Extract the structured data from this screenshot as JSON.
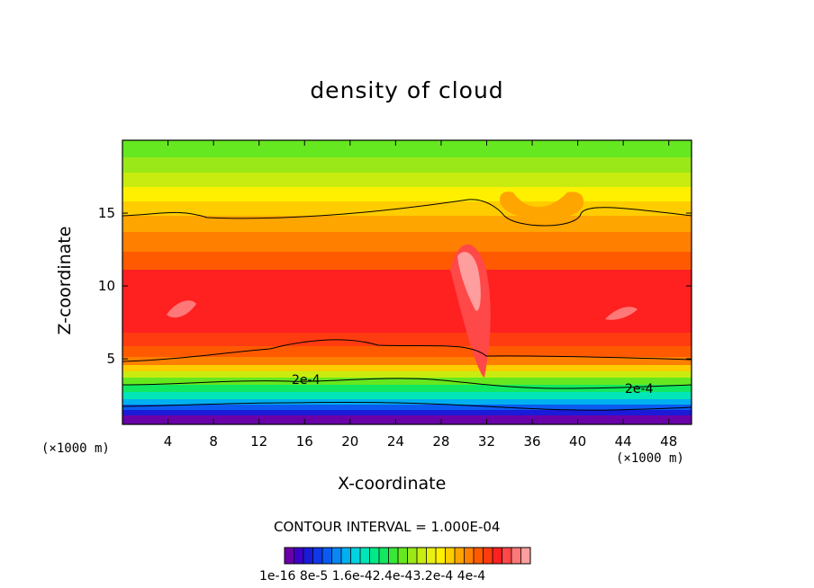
{
  "chart_data": {
    "type": "heatmap",
    "title": "density of cloud",
    "xlabel": "X-coordinate",
    "ylabel": "Z-coordinate",
    "x_unit": "(×1000 m)",
    "xlim": [
      0,
      50
    ],
    "ylim": [
      0.5,
      20
    ],
    "x_ticks": [
      4,
      8,
      12,
      16,
      20,
      24,
      28,
      32,
      36,
      40,
      44,
      48
    ],
    "y_ticks": [
      5,
      10,
      15
    ],
    "contour_interval_text": "CONTOUR INTERVAL = 1.000E-04",
    "contour_labels": [
      "2e-4",
      "2e-4"
    ],
    "colorbar_labels_text": "1e-16 8e-5 1.6e-42.4e-43.2e-4 4e-4",
    "colorbar_colors": [
      "#6a00a8",
      "#3c00c8",
      "#1a1ad8",
      "#1038e8",
      "#0a5cf0",
      "#0a86f5",
      "#00b0f0",
      "#00d4e0",
      "#00e6b8",
      "#00ea8a",
      "#10e860",
      "#38e838",
      "#66e820",
      "#9ae818",
      "#c8ec10",
      "#e8f010",
      "#fff000",
      "#ffcc00",
      "#ffa500",
      "#ff8000",
      "#ff5a00",
      "#ff3c10",
      "#ff2020",
      "#ff4848",
      "#ff7878",
      "#ff9e9e"
    ]
  }
}
